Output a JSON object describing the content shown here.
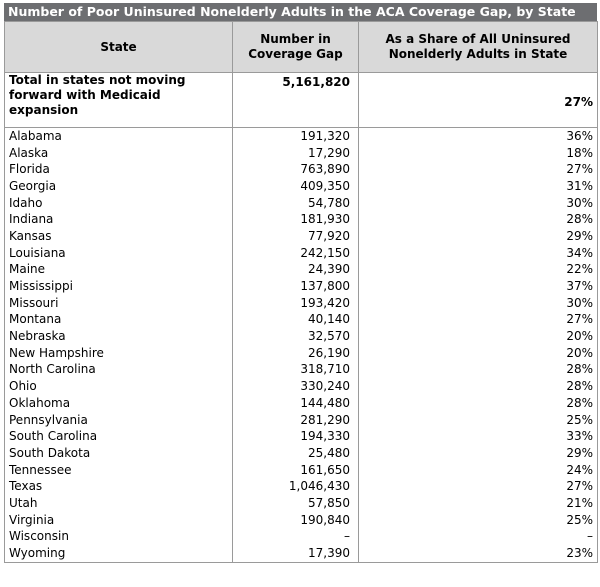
{
  "title": "Number of Poor Uninsured Nonelderly Adults in the ACA Coverage Gap, by State",
  "headers": {
    "state": "State",
    "number": "Number in Coverage Gap",
    "share": "As a Share of All Uninsured Nonelderly Adults in State"
  },
  "total": {
    "label": "Total in states not moving forward with Medicaid expansion",
    "number": "5,161,820",
    "share": "27%"
  },
  "rows": [
    {
      "state": "Alabama",
      "number": "191,320",
      "share": "36%"
    },
    {
      "state": "Alaska",
      "number": "17,290",
      "share": "18%"
    },
    {
      "state": "Florida",
      "number": "763,890",
      "share": "27%"
    },
    {
      "state": "Georgia",
      "number": "409,350",
      "share": "31%"
    },
    {
      "state": "Idaho",
      "number": "54,780",
      "share": "30%"
    },
    {
      "state": "Indiana",
      "number": "181,930",
      "share": "28%"
    },
    {
      "state": "Kansas",
      "number": "77,920",
      "share": "29%"
    },
    {
      "state": "Louisiana",
      "number": "242,150",
      "share": "34%"
    },
    {
      "state": "Maine",
      "number": "24,390",
      "share": "22%"
    },
    {
      "state": "Mississippi",
      "number": "137,800",
      "share": "37%"
    },
    {
      "state": "Missouri",
      "number": "193,420",
      "share": "30%"
    },
    {
      "state": "Montana",
      "number": "40,140",
      "share": "27%"
    },
    {
      "state": "Nebraska",
      "number": "32,570",
      "share": "20%"
    },
    {
      "state": "New Hampshire",
      "number": "26,190",
      "share": "20%"
    },
    {
      "state": "North Carolina",
      "number": "318,710",
      "share": "28%"
    },
    {
      "state": "Ohio",
      "number": "330,240",
      "share": "28%"
    },
    {
      "state": "Oklahoma",
      "number": "144,480",
      "share": "28%"
    },
    {
      "state": "Pennsylvania",
      "number": "281,290",
      "share": "25%"
    },
    {
      "state": "South Carolina",
      "number": "194,330",
      "share": "33%"
    },
    {
      "state": "South Dakota",
      "number": "25,480",
      "share": "29%"
    },
    {
      "state": "Tennessee",
      "number": "161,650",
      "share": "24%"
    },
    {
      "state": "Texas",
      "number": "1,046,430",
      "share": "27%"
    },
    {
      "state": "Utah",
      "number": "57,850",
      "share": "21%"
    },
    {
      "state": "Virginia",
      "number": "190,840",
      "share": "25%"
    },
    {
      "state": "Wisconsin",
      "number": "–",
      "share": "–"
    },
    {
      "state": "Wyoming",
      "number": "17,390",
      "share": "23%"
    }
  ]
}
